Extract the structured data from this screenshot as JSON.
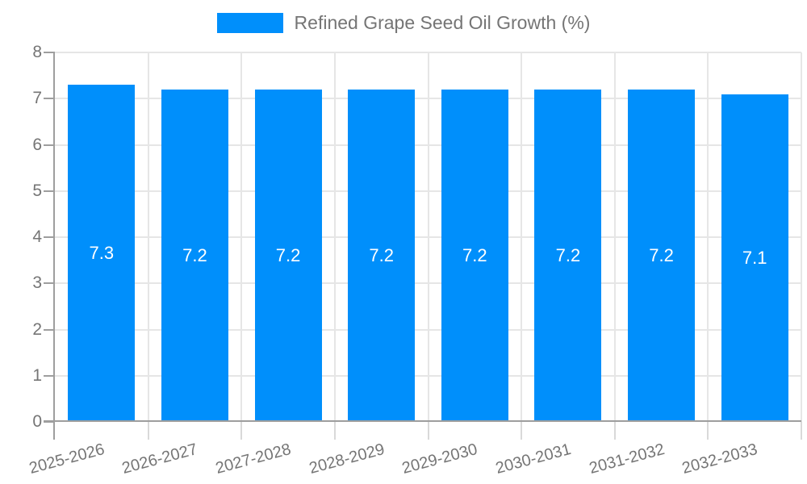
{
  "chart_data": {
    "type": "bar",
    "title": "Refined Grape Seed Oil Growth (%)",
    "legend_position": "top",
    "categories": [
      "2025-2026",
      "2026-2027",
      "2027-2028",
      "2028-2029",
      "2029-2030",
      "2030-2031",
      "2031-2032",
      "2032-2033"
    ],
    "values": [
      7.3,
      7.2,
      7.2,
      7.2,
      7.2,
      7.2,
      7.2,
      7.1
    ],
    "value_labels": [
      "7.3",
      "7.2",
      "7.2",
      "7.2",
      "7.2",
      "7.2",
      "7.2",
      "7.1"
    ],
    "xlabel": "",
    "ylabel": "",
    "ylim": [
      0,
      8
    ],
    "ytick_step": 1,
    "ytick_labels": [
      "0",
      "1",
      "2",
      "3",
      "4",
      "5",
      "6",
      "7",
      "8"
    ],
    "grid": true,
    "colors": {
      "bar": "#008FFB",
      "bar_label_text": "#ffffff",
      "axis_text": "#757575",
      "gridline": "#e6e6e6",
      "axis_line": "#9e9e9e",
      "x_tick": "#d9d9d9",
      "background": "#ffffff"
    }
  }
}
